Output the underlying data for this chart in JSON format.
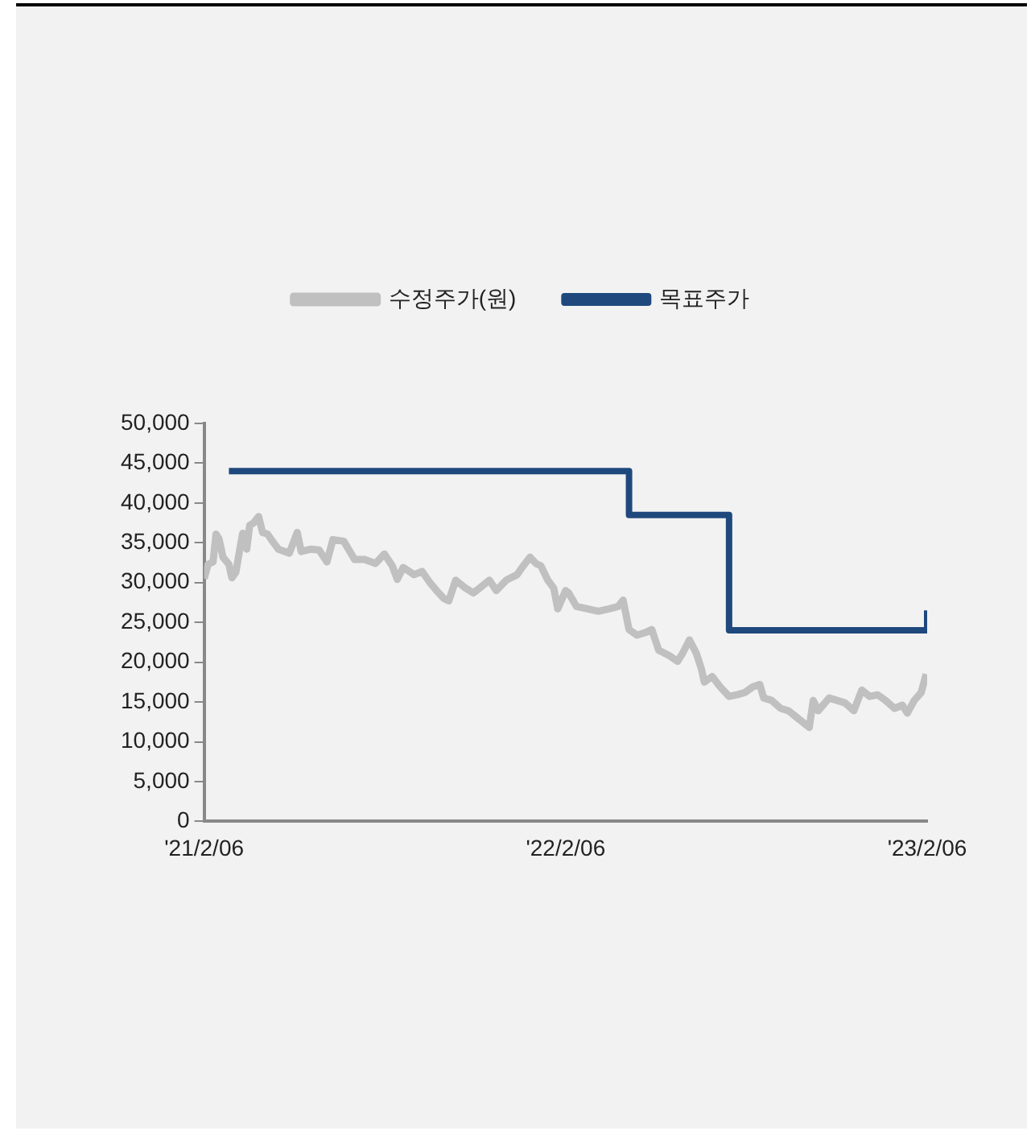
{
  "chart_data": {
    "type": "line",
    "legend": "top",
    "grid": false,
    "marker": "none",
    "xlim": [
      "2021-02-06",
      "2023-02-06"
    ],
    "xticks": [
      {
        "value": "2021-02-06",
        "label": "'21/2/06"
      },
      {
        "value": "2022-02-06",
        "label": "'22/2/06"
      },
      {
        "value": "2023-02-06",
        "label": "'23/2/06"
      }
    ],
    "ylim": [
      0,
      50000
    ],
    "yticks": [
      0,
      {
        "value": 5000,
        "label": "5,000"
      },
      {
        "value": 10000,
        "label": "10,000"
      },
      {
        "value": 15000,
        "label": "15,000"
      },
      {
        "value": 20000,
        "label": "20,000"
      },
      {
        "value": 25000,
        "label": "25,000"
      },
      {
        "value": 30000,
        "label": "30,000"
      },
      {
        "value": 35000,
        "label": "35,000"
      },
      {
        "value": 40000,
        "label": "40,000"
      },
      {
        "value": 45000,
        "label": "45,000"
      },
      {
        "value": 50000,
        "label": "50,000"
      }
    ],
    "series": [
      {
        "name": "수정주가(원)",
        "color": "#c0c0c0",
        "x": [
          "2021-02-06",
          "2021-02-10",
          "2021-02-15",
          "2021-02-18",
          "2021-02-21",
          "2021-02-25",
          "2021-03-03",
          "2021-03-06",
          "2021-03-10",
          "2021-03-15",
          "2021-03-17",
          "2021-03-21",
          "2021-03-24",
          "2021-03-28",
          "2021-04-02",
          "2021-04-06",
          "2021-04-11",
          "2021-04-16",
          "2021-04-22",
          "2021-05-03",
          "2021-05-11",
          "2021-05-15",
          "2021-05-25",
          "2021-06-02",
          "2021-06-10",
          "2021-06-16",
          "2021-06-27",
          "2021-07-08",
          "2021-07-18",
          "2021-07-29",
          "2021-08-07",
          "2021-08-15",
          "2021-08-20",
          "2021-08-26",
          "2021-09-06",
          "2021-09-14",
          "2021-09-22",
          "2021-09-28",
          "2021-10-06",
          "2021-10-11",
          "2021-10-18",
          "2021-10-28",
          "2021-11-05",
          "2021-11-13",
          "2021-11-21",
          "2021-11-28",
          "2021-12-08",
          "2021-12-19",
          "2021-12-24",
          "2022-01-01",
          "2022-01-07",
          "2022-01-12",
          "2022-01-19",
          "2022-01-25",
          "2022-01-29",
          "2022-02-06",
          "2022-02-09",
          "2022-02-17",
          "2022-02-28",
          "2022-03-11",
          "2022-03-22",
          "2022-03-31",
          "2022-04-05",
          "2022-04-11",
          "2022-04-19",
          "2022-04-27",
          "2022-05-04",
          "2022-05-11",
          "2022-05-22",
          "2022-05-30",
          "2022-06-04",
          "2022-06-11",
          "2022-06-18",
          "2022-06-23",
          "2022-06-26",
          "2022-07-04",
          "2022-07-12",
          "2022-07-21",
          "2022-07-29",
          "2022-08-06",
          "2022-08-14",
          "2022-08-21",
          "2022-08-25",
          "2022-09-02",
          "2022-09-11",
          "2022-09-19",
          "2022-09-27",
          "2022-10-03",
          "2022-10-10",
          "2022-10-14",
          "2022-10-19",
          "2022-10-30",
          "2022-11-07",
          "2022-11-15",
          "2022-11-24",
          "2022-12-02",
          "2022-12-10",
          "2022-12-18",
          "2022-12-26",
          "2023-01-04",
          "2023-01-12",
          "2023-01-17",
          "2023-01-24",
          "2023-01-31",
          "2023-02-05"
        ],
        "values": [
          30500,
          32300,
          32600,
          36100,
          35500,
          33200,
          32300,
          30600,
          31300,
          34900,
          36200,
          34200,
          37200,
          37500,
          38300,
          36300,
          36100,
          35200,
          34200,
          33700,
          36300,
          33900,
          34200,
          34100,
          32600,
          35400,
          35200,
          32900,
          32900,
          32400,
          33600,
          32100,
          30400,
          31900,
          31000,
          31400,
          30000,
          29100,
          28000,
          27700,
          30300,
          29300,
          28700,
          29500,
          30300,
          29000,
          30300,
          31000,
          31900,
          33200,
          32400,
          32100,
          30300,
          29300,
          26700,
          29000,
          28700,
          27000,
          26700,
          26400,
          26700,
          27000,
          27800,
          24100,
          23400,
          23700,
          24100,
          21500,
          20800,
          20100,
          21100,
          22800,
          21100,
          19200,
          17500,
          18200,
          16900,
          15700,
          15900,
          16200,
          16900,
          17200,
          15500,
          15200,
          14200,
          13900,
          13100,
          12500,
          11800,
          15200,
          13900,
          15500,
          15200,
          14900,
          13900,
          16500,
          15700,
          15900,
          15200,
          14200,
          14600,
          13600,
          15200,
          16200,
          18500
        ]
      },
      {
        "name": "목표주가",
        "type": "step",
        "color": "#1f497d",
        "x": [
          "2021-03-03",
          "2022-04-11",
          "2022-07-21",
          "2023-02-06"
        ],
        "values": [
          44000,
          38500,
          24000,
          26500
        ]
      }
    ]
  }
}
